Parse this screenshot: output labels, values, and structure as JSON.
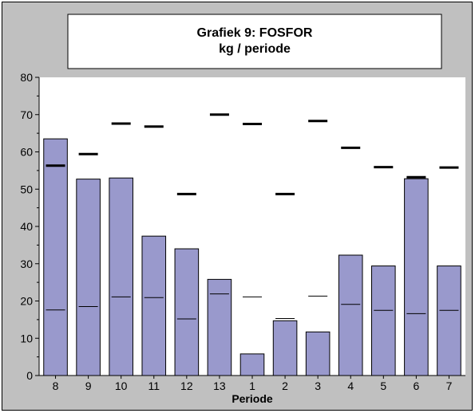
{
  "chart_data": {
    "type": "bar",
    "title": "Grafiek 9: FOSFOR",
    "subtitle": "kg / periode",
    "xlabel": "Periode",
    "ylabel": "",
    "ylim": [
      0,
      80
    ],
    "y_ticks": [
      0,
      10,
      20,
      30,
      40,
      50,
      60,
      70,
      80
    ],
    "categories": [
      "8",
      "9",
      "10",
      "11",
      "12",
      "13",
      "1",
      "2",
      "3",
      "4",
      "5",
      "6",
      "7"
    ],
    "series": [
      {
        "type": "bar",
        "values": [
          63.5,
          52.7,
          53.0,
          37.4,
          34.0,
          25.8,
          5.8,
          14.7,
          11.7,
          32.3,
          29.4,
          52.8,
          29.4
        ]
      },
      {
        "type": "marker-thick",
        "values": [
          56.3,
          59.4,
          67.6,
          66.8,
          48.7,
          70.0,
          67.5,
          48.7,
          68.3,
          61.1,
          55.9,
          53.2,
          55.8
        ]
      },
      {
        "type": "marker-thin",
        "values": [
          17.6,
          18.5,
          21.1,
          20.9,
          15.2,
          21.9,
          21.1,
          15.3,
          21.3,
          19.1,
          17.5,
          16.6,
          17.5
        ]
      }
    ],
    "grid": false,
    "colors": {
      "bar_fill": "#9999cc",
      "plot_bg": "#ffffff",
      "chart_bg": "#c0c0c0",
      "marker": "#000000"
    }
  }
}
